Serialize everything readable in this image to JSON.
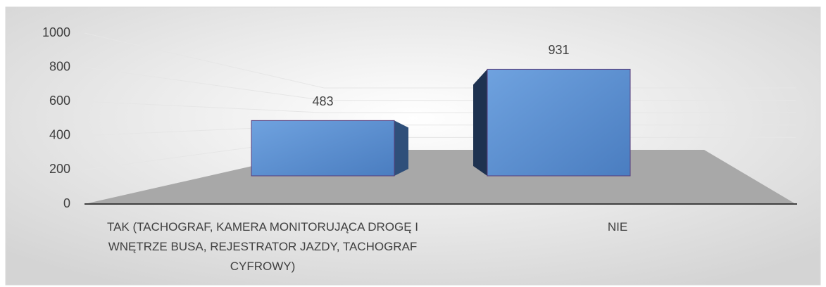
{
  "chart_data": {
    "type": "bar3d",
    "categories": [
      "TAK (TACHOGRAF, KAMERA MONITORUJĄCA DROGĘ I WNĘTRZE BUSA, REJESTRATOR JAZDY, TACHOGRAF CYFROWY)",
      "NIE"
    ],
    "values": [
      483,
      931
    ],
    "color": "#4f81c7",
    "ylim": [
      0,
      1000
    ],
    "yticks": [
      0,
      200,
      400,
      600,
      800,
      1000
    ],
    "grid": true
  }
}
